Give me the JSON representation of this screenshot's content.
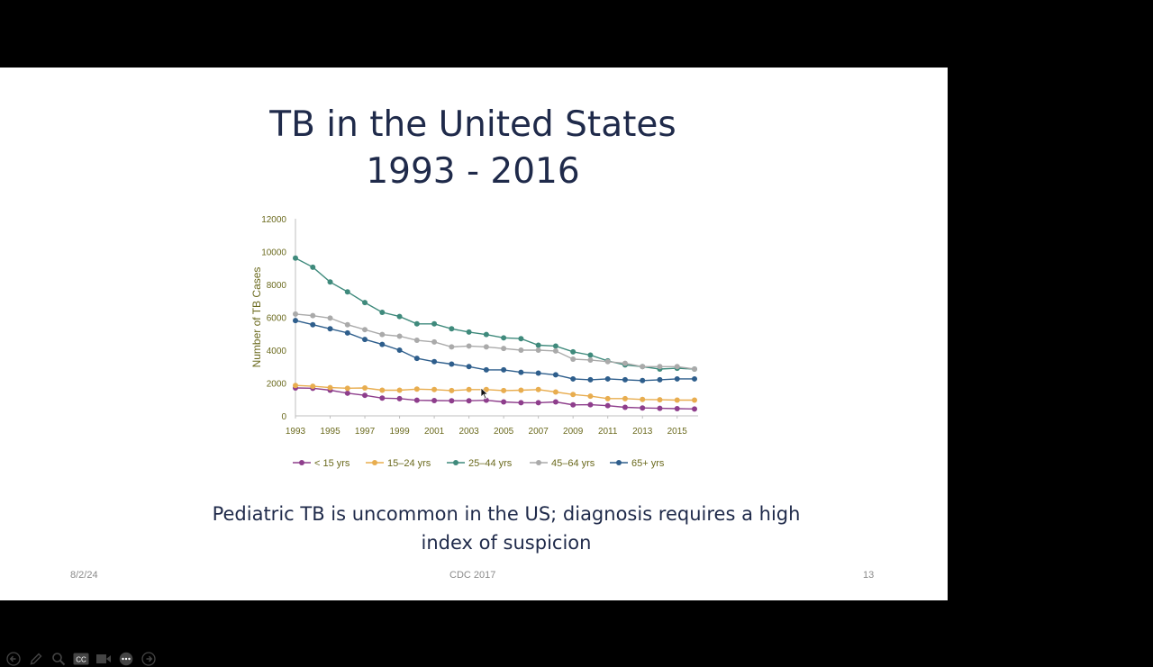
{
  "slide": {
    "title": "TB in the United States\n1993 - 2016",
    "subtitle": "Pediatric TB is uncommon in the US; diagnosis requires a high index of suspicion",
    "footer_date": "8/2/24",
    "footer_source": "CDC 2017",
    "page_number": "13"
  },
  "toolbar": {
    "icons": [
      "back-arrow-icon",
      "pen-icon",
      "magnifier-icon",
      "captions-icon",
      "camera-icon",
      "more-icon",
      "forward-arrow-icon"
    ],
    "captions_label": "CC"
  },
  "colors": {
    "axis_text": "#6b6a1e",
    "axis_line": "#bfbfbf",
    "title_text": "#1f2a4a"
  },
  "chart_data": {
    "type": "line",
    "ylabel": "Number of TB Cases",
    "xlabel": "",
    "x": [
      1993,
      1994,
      1995,
      1996,
      1997,
      1998,
      1999,
      2000,
      2001,
      2002,
      2003,
      2004,
      2005,
      2006,
      2007,
      2008,
      2009,
      2010,
      2011,
      2012,
      2013,
      2014,
      2015,
      2016
    ],
    "x_tick_labels": [
      "1993",
      "1995",
      "1997",
      "1999",
      "2001",
      "2003",
      "2005",
      "2007",
      "2009",
      "2011",
      "2013",
      "2015"
    ],
    "y_ticks": [
      "0",
      "2000",
      "4000",
      "6000",
      "8000",
      "10000",
      "12000"
    ],
    "ylim": [
      0,
      12000
    ],
    "grid": false,
    "legend_position": "bottom",
    "series": [
      {
        "name": "< 15 yrs",
        "color": "#8e3e8c",
        "values": [
          1700,
          1680,
          1560,
          1380,
          1250,
          1080,
          1050,
          950,
          930,
          920,
          920,
          950,
          850,
          800,
          800,
          850,
          670,
          680,
          620,
          520,
          480,
          460,
          440,
          420
        ]
      },
      {
        "name": "15–24 yrs",
        "color": "#e8ad4f",
        "values": [
          1850,
          1800,
          1720,
          1680,
          1700,
          1560,
          1560,
          1630,
          1600,
          1540,
          1600,
          1600,
          1540,
          1560,
          1600,
          1450,
          1300,
          1200,
          1050,
          1050,
          1000,
          980,
          960,
          960
        ]
      },
      {
        "name": "25–44 yrs",
        "color": "#3f8a7c",
        "values": [
          9600,
          9050,
          8150,
          7550,
          6900,
          6300,
          6050,
          5600,
          5600,
          5300,
          5100,
          4950,
          4750,
          4700,
          4300,
          4250,
          3900,
          3700,
          3350,
          3100,
          3000,
          2850,
          2900,
          2850
        ]
      },
      {
        "name": "45–64 yrs",
        "color": "#aaaaaa",
        "values": [
          6200,
          6100,
          5950,
          5550,
          5250,
          4950,
          4850,
          4600,
          4500,
          4200,
          4250,
          4200,
          4100,
          4000,
          4000,
          3950,
          3450,
          3400,
          3300,
          3200,
          3000,
          3000,
          3000,
          2850
        ]
      },
      {
        "name": "65+ yrs",
        "color": "#2e5e8c",
        "values": [
          5800,
          5550,
          5300,
          5050,
          4650,
          4350,
          4000,
          3500,
          3300,
          3150,
          3000,
          2800,
          2800,
          2650,
          2600,
          2500,
          2250,
          2200,
          2250,
          2200,
          2150,
          2200,
          2250,
          2250
        ]
      }
    ]
  }
}
